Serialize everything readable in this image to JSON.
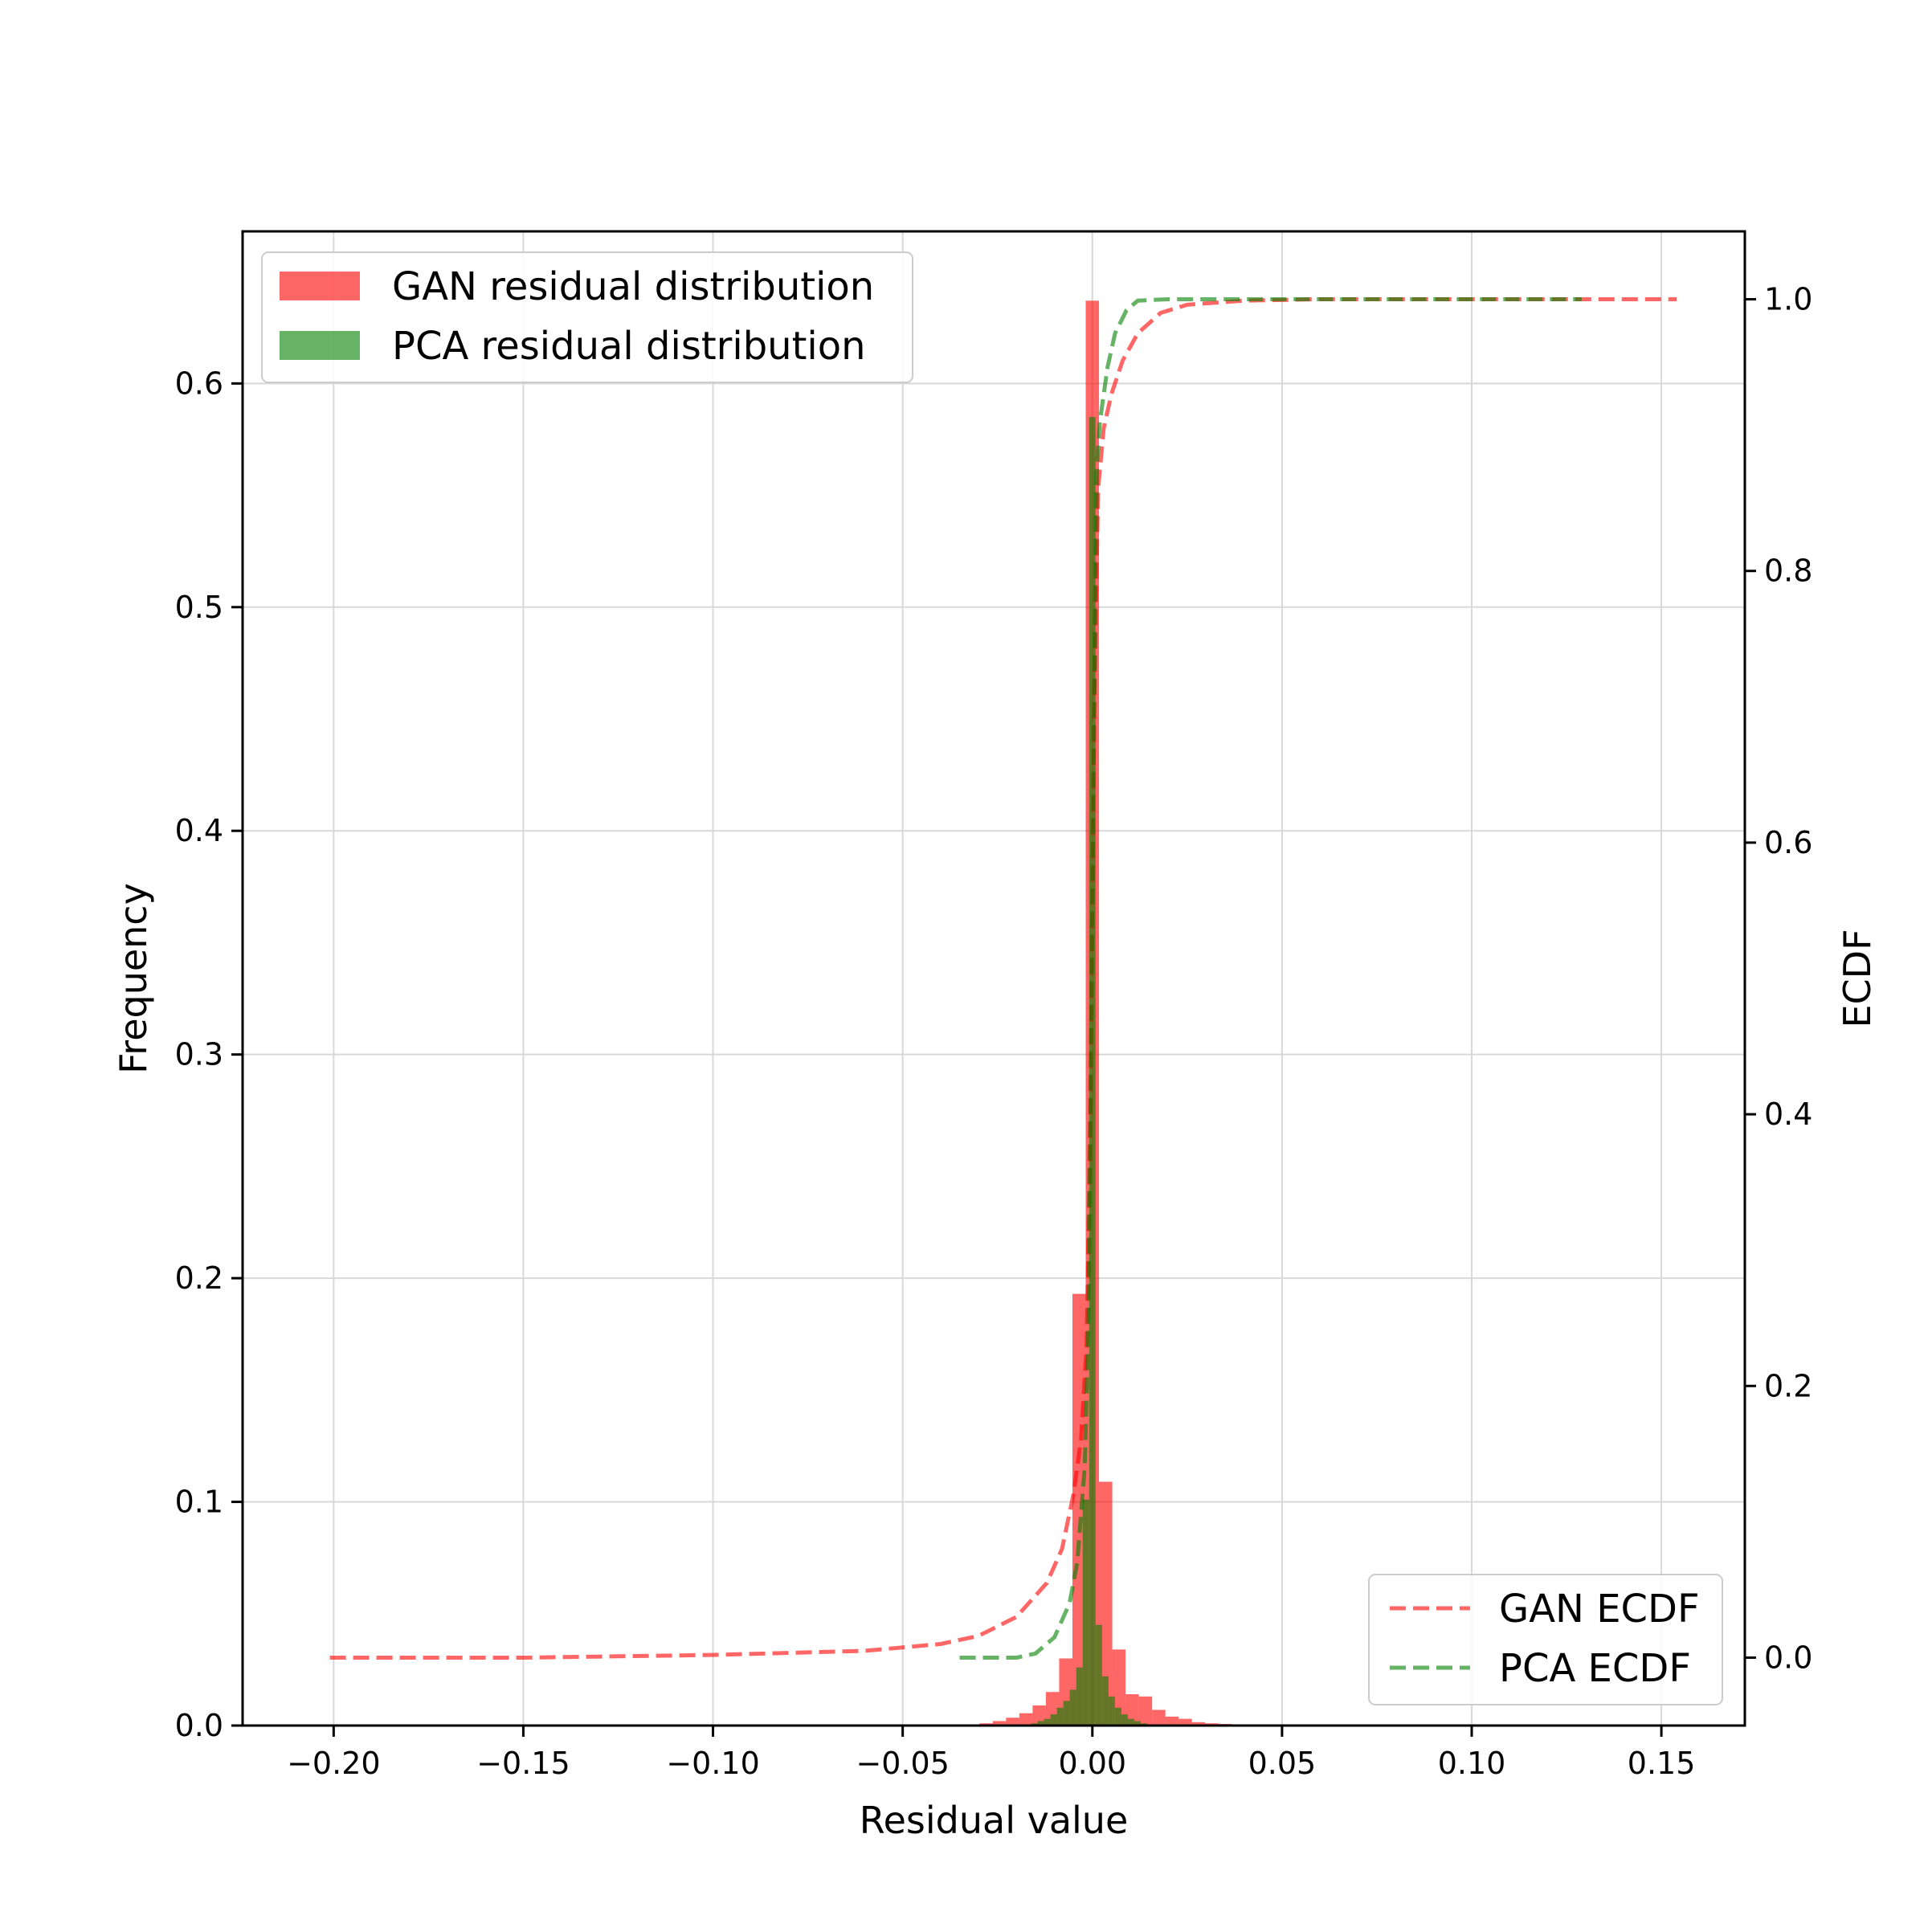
{
  "chart_data": {
    "type": "bar",
    "title": "",
    "xlabel": "Residual value",
    "ylabel": "Frequency",
    "y2label": "ECDF",
    "xlim": [
      -0.224,
      0.172
    ],
    "ylim": [
      0,
      0.668
    ],
    "y2lim": [
      -0.05,
      1.05
    ],
    "x_ticks": [
      -0.2,
      -0.15,
      -0.1,
      -0.05,
      0.0,
      0.05,
      0.1,
      0.15
    ],
    "x_tick_labels": [
      "−0.20",
      "−0.15",
      "−0.10",
      "−0.05",
      "0.00",
      "0.05",
      "0.10",
      "0.15"
    ],
    "y_ticks": [
      0.0,
      0.1,
      0.2,
      0.3,
      0.4,
      0.5,
      0.6
    ],
    "y_tick_labels": [
      "0.0",
      "0.1",
      "0.2",
      "0.3",
      "0.4",
      "0.5",
      "0.6"
    ],
    "y2_ticks": [
      0.0,
      0.2,
      0.4,
      0.6,
      0.8,
      1.0
    ],
    "y2_tick_labels": [
      "0.0",
      "0.2",
      "0.4",
      "0.6",
      "0.8",
      "1.0"
    ],
    "grid": true,
    "histograms": [
      {
        "name": "GAN residual distribution",
        "color": "#ff0000",
        "opacity": 0.6,
        "bin_width": 0.0035,
        "bin_centers": [
          -0.0315,
          -0.028,
          -0.0245,
          -0.021,
          -0.0175,
          -0.014,
          -0.0105,
          -0.007,
          -0.0035,
          0.0,
          0.0035,
          0.007,
          0.0105,
          0.014,
          0.0175,
          0.021,
          0.0245,
          0.028,
          0.0315,
          0.035,
          0.0385
        ],
        "values": [
          0.0005,
          0.001,
          0.002,
          0.0035,
          0.0055,
          0.009,
          0.015,
          0.03,
          0.193,
          0.637,
          0.109,
          0.034,
          0.014,
          0.013,
          0.007,
          0.004,
          0.003,
          0.0015,
          0.001,
          0.0007,
          0.0004
        ]
      },
      {
        "name": "PCA residual distribution",
        "color": "#008000",
        "opacity": 0.6,
        "bin_width": 0.0017,
        "bin_centers": [
          -0.0153,
          -0.0136,
          -0.0119,
          -0.0102,
          -0.0085,
          -0.0068,
          -0.0051,
          -0.0034,
          -0.0017,
          0.0,
          0.0017,
          0.0034,
          0.0051,
          0.0068,
          0.0085,
          0.0102,
          0.0119,
          0.0136
        ],
        "values": [
          0.001,
          0.002,
          0.003,
          0.005,
          0.008,
          0.011,
          0.016,
          0.026,
          0.101,
          0.585,
          0.045,
          0.022,
          0.013,
          0.008,
          0.005,
          0.003,
          0.002,
          0.001
        ]
      }
    ],
    "ecdf_series": [
      {
        "name": "GAN ECDF",
        "color": "#ff0000",
        "x": [
          -0.201,
          -0.15,
          -0.1,
          -0.06,
          -0.04,
          -0.03,
          -0.02,
          -0.012,
          -0.008,
          -0.005,
          -0.003,
          -0.0015,
          -0.0005,
          0.0005,
          0.0015,
          0.003,
          0.005,
          0.008,
          0.012,
          0.018,
          0.025,
          0.04,
          0.06,
          0.1,
          0.13,
          0.154
        ],
        "y": [
          0.0,
          0.0,
          0.002,
          0.005,
          0.01,
          0.016,
          0.03,
          0.055,
          0.08,
          0.12,
          0.16,
          0.23,
          0.4,
          0.7,
          0.86,
          0.905,
          0.93,
          0.955,
          0.975,
          0.99,
          0.996,
          0.999,
          1.0,
          1.0,
          1.0,
          1.0
        ]
      },
      {
        "name": "PCA ECDF",
        "color": "#008000",
        "x": [
          -0.035,
          -0.02,
          -0.015,
          -0.01,
          -0.006,
          -0.004,
          -0.002,
          -0.001,
          0.0,
          0.001,
          0.002,
          0.004,
          0.006,
          0.009,
          0.012,
          0.02,
          0.05,
          0.1,
          0.129
        ],
        "y": [
          0.0,
          0.0,
          0.003,
          0.015,
          0.04,
          0.07,
          0.14,
          0.25,
          0.55,
          0.87,
          0.91,
          0.95,
          0.975,
          0.992,
          0.999,
          1.0,
          1.0,
          1.0,
          1.0
        ]
      }
    ],
    "legends": [
      {
        "position": "upper-left",
        "entries": [
          "GAN residual distribution",
          "PCA residual distribution"
        ]
      },
      {
        "position": "lower-right",
        "entries": [
          "GAN ECDF",
          "PCA ECDF"
        ]
      }
    ]
  }
}
